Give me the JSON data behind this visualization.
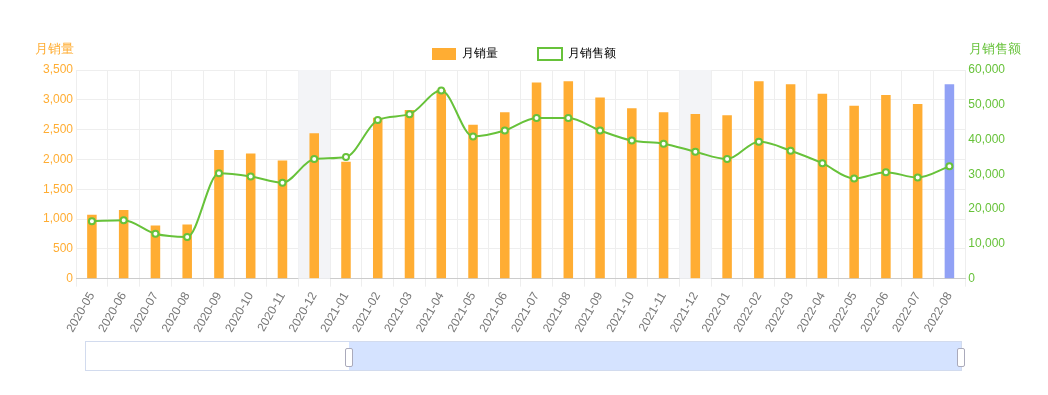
{
  "chart_data": {
    "type": "bar",
    "ylabel": "月销量",
    "y2label": "月销售额",
    "categories": [
      "2020-05",
      "2020-06",
      "2020-07",
      "2020-08",
      "2020-09",
      "2020-10",
      "2020-11",
      "2020-12",
      "2021-01",
      "2021-02",
      "2021-03",
      "2021-04",
      "2021-05",
      "2021-06",
      "2021-07",
      "2021-08",
      "2021-09",
      "2021-10",
      "2021-11",
      "2021-12",
      "2022-01",
      "2022-02",
      "2022-03",
      "2022-04",
      "2022-05",
      "2022-06",
      "2022-07",
      "2022-08"
    ],
    "series": [
      {
        "name": "月销量",
        "color": "#ffad33",
        "colors": [
          "#ffad33",
          "#ffad33",
          "#ffad33",
          "#ffad33",
          "#ffad33",
          "#ffad33",
          "#ffad33",
          "#ffad33",
          "#ffad33",
          "#ffad33",
          "#ffad33",
          "#ffad33",
          "#ffad33",
          "#ffad33",
          "#ffad33",
          "#ffad33",
          "#ffad33",
          "#ffad33",
          "#ffad33",
          "#ffad33",
          "#ffad33",
          "#ffad33",
          "#ffad33",
          "#ffad33",
          "#ffad33",
          "#ffad33",
          "#ffad33",
          "#91a1f5"
        ],
        "values": [
          1070,
          1150,
          890,
          910,
          2160,
          2100,
          1980,
          2440,
          1960,
          2700,
          2830,
          3170,
          2580,
          2790,
          3290,
          3310,
          3040,
          2860,
          2790,
          2760,
          2740,
          3310,
          3260,
          3100,
          2900,
          3080,
          2930,
          3260
        ]
      },
      {
        "name": "月销售额",
        "type": "line",
        "axis": "y2",
        "color": "#67c23a",
        "values": [
          16500,
          16800,
          12900,
          12000,
          30300,
          29400,
          27600,
          34400,
          35000,
          45600,
          47300,
          54100,
          40900,
          42600,
          46200,
          46200,
          42600,
          39700,
          38800,
          36500,
          34400,
          39400,
          36800,
          33200,
          28800,
          30600,
          29100,
          32300
        ]
      }
    ],
    "ylim": [
      0,
      3500
    ],
    "yticks": [
      0,
      500,
      {
        "value": 1000,
        "label": "1,000"
      },
      {
        "value": 1500,
        "label": "1,500"
      },
      {
        "value": 2000,
        "label": "2,000"
      },
      {
        "value": 2500,
        "label": "2,500"
      },
      {
        "value": 3000,
        "label": "3,000"
      },
      {
        "value": 3500,
        "label": "3,500"
      }
    ],
    "y2lim": [
      0,
      60000
    ],
    "y2ticks": [
      0,
      {
        "value": 10000,
        "label": "10,000"
      },
      {
        "value": 20000,
        "label": "20,000"
      },
      {
        "value": 30000,
        "label": "30,000"
      },
      {
        "value": 40000,
        "label": "40,000"
      },
      {
        "value": 50000,
        "label": "50,000"
      },
      {
        "value": 60000,
        "label": "60,000"
      }
    ],
    "bands": [
      {
        "axis": "x",
        "from": "2020-12",
        "to": "2020-12",
        "color": "#f3f4f7"
      },
      {
        "axis": "x",
        "from": "2021-12",
        "to": "2021-12",
        "color": "#f3f4f7"
      }
    ],
    "grid": true,
    "legend": "top",
    "marker": "circle",
    "line_style": "solid"
  }
}
